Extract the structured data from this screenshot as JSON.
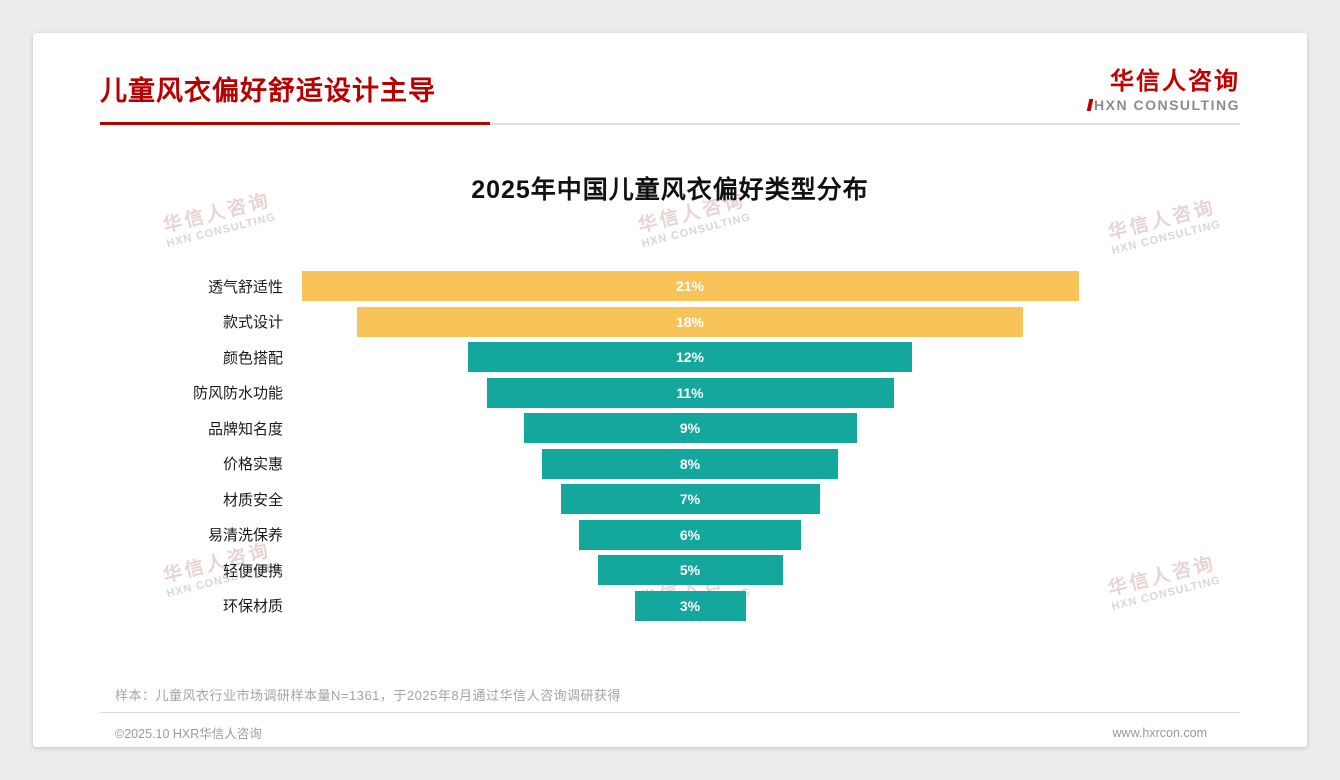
{
  "header": {
    "title": "儿童风衣偏好舒适设计主导",
    "logo_cn": "华信人咨询",
    "logo_en": "HXN CONSULTING"
  },
  "watermark": {
    "line1": "华信人咨询",
    "line2": "HXN CONSULTING"
  },
  "chart_data": {
    "type": "bar",
    "title": "2025年中国儿童风衣偏好类型分布",
    "orientation": "horizontal_centered_funnel",
    "categories": [
      "透气舒适性",
      "款式设计",
      "颜色搭配",
      "防风防水功能",
      "品牌知名度",
      "价格实惠",
      "材质安全",
      "易清洗保养",
      "轻便便携",
      "环保材质"
    ],
    "values": [
      21,
      18,
      12,
      11,
      9,
      8,
      7,
      6,
      5,
      3
    ],
    "value_labels": [
      "21%",
      "18%",
      "12%",
      "11%",
      "9%",
      "8%",
      "7%",
      "6%",
      "5%",
      "3%"
    ],
    "unit": "%",
    "xlim": [
      0,
      21
    ],
    "grid": false,
    "legend": false,
    "highlight_indices": [
      0,
      1
    ],
    "colors": {
      "highlight": "#F8C45A",
      "normal": "#14A79D",
      "value_text": "#FFFFFF"
    }
  },
  "footnote": "样本：儿童风衣行业市场调研样本量N=1361，于2025年8月通过华信人咨询调研获得",
  "footer": {
    "copyright": "©2025.10 HXR华信人咨询",
    "website": "www.hxrcon.com"
  }
}
